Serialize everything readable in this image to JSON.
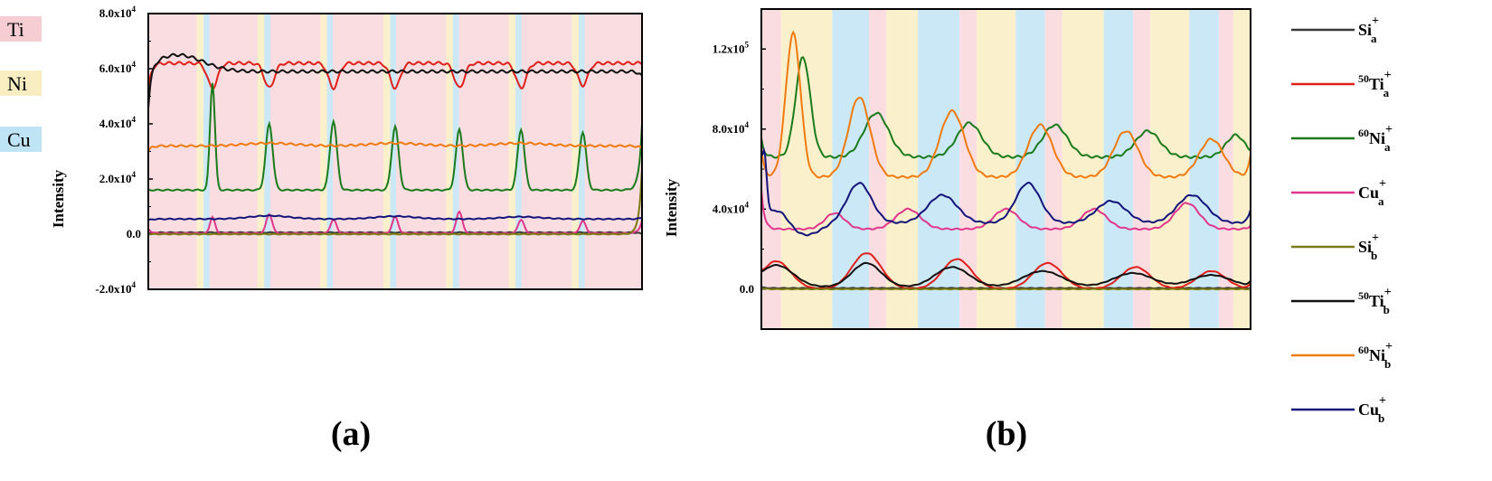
{
  "key": [
    {
      "label": "Ti",
      "color": "#f5cdd3"
    },
    {
      "label": "Ni",
      "color": "#f8eec1"
    },
    {
      "label": "Cu",
      "color": "#bfe4f5"
    }
  ],
  "legend": [
    {
      "base": "Si",
      "mass": "",
      "sub": "a",
      "color": "#3a3a3a"
    },
    {
      "base": "Ti",
      "mass": "50",
      "sub": "a",
      "color": "#e0201b"
    },
    {
      "base": "Ni",
      "mass": "60",
      "sub": "a",
      "color": "#1b7a1b"
    },
    {
      "base": "Cu",
      "mass": "",
      "sub": "a",
      "color": "#e0368c"
    },
    {
      "base": "Si",
      "mass": "",
      "sub": "b",
      "color": "#7a7a10"
    },
    {
      "base": "Ti",
      "mass": "50",
      "sub": "b",
      "color": "#111111"
    },
    {
      "base": "Ni",
      "mass": "60",
      "sub": "b",
      "color": "#f07a10"
    },
    {
      "base": "Cu",
      "mass": "",
      "sub": "b",
      "color": "#13137a"
    }
  ],
  "chart_data": [
    {
      "panel_label": "(a)",
      "type": "line",
      "ylabel": "Intensity",
      "ylim": [
        -20000,
        80000
      ],
      "yticks": [
        {
          "value": -20000,
          "label": "-2.0x10",
          "exp": "4"
        },
        {
          "value": 0,
          "label": "0.0",
          "exp": ""
        },
        {
          "value": 20000,
          "label": "2.0x10",
          "exp": "4"
        },
        {
          "value": 40000,
          "label": "4.0x10",
          "exp": "4"
        },
        {
          "value": 60000,
          "label": "6.0x10",
          "exp": "4"
        },
        {
          "value": 80000,
          "label": "8.0x10",
          "exp": "4"
        }
      ],
      "series": [
        {
          "legend": 0,
          "y0": 0,
          "y1": 0,
          "baseline": 600,
          "pulses": []
        },
        {
          "legend": 1,
          "y0": 52000,
          "y1": 62000,
          "baseline": 62000,
          "pulses": [
            {
              "c": 0.13,
              "a": -9000,
              "w": 0.01
            },
            {
              "c": 0.245,
              "a": -9000,
              "w": 0.01
            },
            {
              "c": 0.375,
              "a": -9000,
              "w": 0.01
            },
            {
              "c": 0.5,
              "a": -9000,
              "w": 0.01
            },
            {
              "c": 0.63,
              "a": -9000,
              "w": 0.01
            },
            {
              "c": 0.755,
              "a": -9000,
              "w": 0.01
            },
            {
              "c": 0.88,
              "a": -8000,
              "w": 0.01
            }
          ]
        },
        {
          "legend": 2,
          "y0": 16000,
          "y1": 40000,
          "baseline": 16000,
          "pulses": [
            {
              "c": 0.13,
              "a": 39000,
              "w": 0.005
            },
            {
              "c": 0.245,
              "a": 24000,
              "w": 0.007
            },
            {
              "c": 0.375,
              "a": 25000,
              "w": 0.007
            },
            {
              "c": 0.5,
              "a": 23000,
              "w": 0.007
            },
            {
              "c": 0.63,
              "a": 22000,
              "w": 0.007
            },
            {
              "c": 0.755,
              "a": 22000,
              "w": 0.007
            },
            {
              "c": 0.88,
              "a": 21000,
              "w": 0.007
            }
          ]
        },
        {
          "legend": 3,
          "y0": 2000,
          "y1": 5000,
          "baseline": 300,
          "pulses": [
            {
              "c": 0.13,
              "a": 6000,
              "w": 0.005
            },
            {
              "c": 0.245,
              "a": 7000,
              "w": 0.006
            },
            {
              "c": 0.375,
              "a": 5000,
              "w": 0.006
            },
            {
              "c": 0.5,
              "a": 6000,
              "w": 0.006
            },
            {
              "c": 0.63,
              "a": 8000,
              "w": 0.006
            },
            {
              "c": 0.755,
              "a": 5000,
              "w": 0.006
            },
            {
              "c": 0.88,
              "a": 4500,
              "w": 0.006
            }
          ]
        },
        {
          "legend": 4,
          "y0": 0,
          "y1": 24000,
          "baseline": 0,
          "pulses": []
        },
        {
          "legend": 5,
          "y0": 46000,
          "y1": 57000,
          "baseline": 59000,
          "pulses": [
            {
              "c": 0.06,
              "a": 6000,
              "w": 0.05
            }
          ]
        },
        {
          "legend": 6,
          "y0": 30000,
          "y1": 31000,
          "baseline": 32000,
          "pulses": [
            {
              "c": 0.245,
              "a": 1000,
              "w": 0.05
            },
            {
              "c": 0.5,
              "a": 1000,
              "w": 0.05
            },
            {
              "c": 0.755,
              "a": 1000,
              "w": 0.05
            }
          ]
        },
        {
          "legend": 7,
          "y0": 5000,
          "y1": 6000,
          "baseline": 5500,
          "pulses": [
            {
              "c": 0.245,
              "a": 1200,
              "w": 0.04
            },
            {
              "c": 0.5,
              "a": 1000,
              "w": 0.04
            },
            {
              "c": 0.755,
              "a": 800,
              "w": 0.04
            }
          ]
        }
      ]
    },
    {
      "panel_label": "(b)",
      "type": "line",
      "ylabel": "Intensity",
      "ylim": [
        -20000,
        140000
      ],
      "yticks": [
        {
          "value": 0,
          "label": "0.0",
          "exp": ""
        },
        {
          "value": 40000,
          "label": "4.0x10",
          "exp": "4"
        },
        {
          "value": 80000,
          "label": "8.0x10",
          "exp": "4"
        },
        {
          "value": 120000,
          "label": "1.2x10",
          "exp": "5"
        }
      ],
      "series": [
        {
          "legend": 0,
          "y0": 1000,
          "y1": 0,
          "baseline": 500,
          "pulses": []
        },
        {
          "legend": 1,
          "y0": 10000,
          "y1": 3000,
          "baseline": 0,
          "pulses": [
            {
              "c": 0.03,
              "a": 14000,
              "w": 0.03
            },
            {
              "c": 0.215,
              "a": 18000,
              "w": 0.03
            },
            {
              "c": 0.4,
              "a": 15000,
              "w": 0.03
            },
            {
              "c": 0.585,
              "a": 13000,
              "w": 0.03
            },
            {
              "c": 0.765,
              "a": 11000,
              "w": 0.03
            },
            {
              "c": 0.92,
              "a": 9000,
              "w": 0.03
            }
          ]
        },
        {
          "legend": 2,
          "y0": 75000,
          "y1": 70000,
          "baseline": 66000,
          "pulses": [
            {
              "c": 0.085,
              "a": 50000,
              "w": 0.015
            },
            {
              "c": 0.235,
              "a": 22000,
              "w": 0.025
            },
            {
              "c": 0.425,
              "a": 17000,
              "w": 0.025
            },
            {
              "c": 0.6,
              "a": 16000,
              "w": 0.025
            },
            {
              "c": 0.79,
              "a": 13000,
              "w": 0.025
            },
            {
              "c": 0.97,
              "a": 11000,
              "w": 0.02
            }
          ]
        },
        {
          "legend": 3,
          "y0": 50000,
          "y1": 32000,
          "baseline": 30000,
          "pulses": [
            {
              "c": 0.15,
              "a": 8000,
              "w": 0.02
            },
            {
              "c": 0.3,
              "a": 10000,
              "w": 0.025
            },
            {
              "c": 0.5,
              "a": 10000,
              "w": 0.025
            },
            {
              "c": 0.68,
              "a": 10000,
              "w": 0.025
            },
            {
              "c": 0.87,
              "a": 13000,
              "w": 0.025
            }
          ]
        },
        {
          "legend": 4,
          "y0": 500,
          "y1": 0,
          "baseline": 0,
          "pulses": []
        },
        {
          "legend": 5,
          "y0": 9000,
          "y1": 4000,
          "baseline": 1000,
          "pulses": [
            {
              "c": 0.03,
              "a": 11000,
              "w": 0.035
            },
            {
              "c": 0.215,
              "a": 12000,
              "w": 0.03
            },
            {
              "c": 0.39,
              "a": 10000,
              "w": 0.035
            },
            {
              "c": 0.575,
              "a": 8000,
              "w": 0.04
            },
            {
              "c": 0.76,
              "a": 7000,
              "w": 0.04
            },
            {
              "c": 0.92,
              "a": 6000,
              "w": 0.04
            }
          ]
        },
        {
          "legend": 6,
          "y0": 70000,
          "y1": 67000,
          "baseline": 56000,
          "pulses": [
            {
              "c": 0.065,
              "a": 72000,
              "w": 0.015
            },
            {
              "c": 0.2,
              "a": 40000,
              "w": 0.022
            },
            {
              "c": 0.39,
              "a": 33000,
              "w": 0.025
            },
            {
              "c": 0.57,
              "a": 26000,
              "w": 0.025
            },
            {
              "c": 0.745,
              "a": 23000,
              "w": 0.025
            },
            {
              "c": 0.92,
              "a": 19000,
              "w": 0.025
            }
          ]
        },
        {
          "legend": 7,
          "y0": 68000,
          "y1": 40000,
          "baseline": 33000,
          "pulses": [
            {
              "c": 0.005,
              "a": 35000,
              "w": 0.005
            },
            {
              "c": 0.035,
              "a": 7000,
              "w": 0.02
            },
            {
              "c": 0.2,
              "a": 20000,
              "w": 0.025
            },
            {
              "c": 0.37,
              "a": 14000,
              "w": 0.03
            },
            {
              "c": 0.545,
              "a": 20000,
              "w": 0.025
            },
            {
              "c": 0.715,
              "a": 11000,
              "w": 0.03
            },
            {
              "c": 0.88,
              "a": 14000,
              "w": 0.03
            },
            {
              "c": 0.09,
              "a": -6000,
              "w": 0.03
            }
          ]
        }
      ]
    }
  ]
}
